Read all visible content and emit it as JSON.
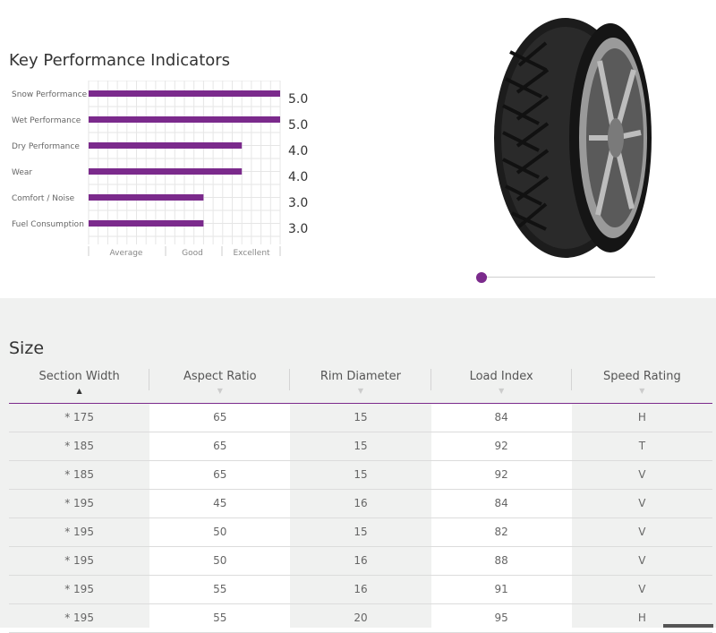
{
  "kpi": {
    "title": "Key Performance Indicators",
    "colors": {
      "bar": "#7b2a8c",
      "grid": "#e6e6e6"
    },
    "scale_labels": [
      "Average",
      "Good",
      "Excellent"
    ]
  },
  "chart_data": {
    "type": "bar",
    "orientation": "horizontal",
    "title": "Key Performance Indicators",
    "categories": [
      "Snow Performance",
      "Wet Performance",
      "Dry Performance",
      "Wear",
      "Comfort / Noise",
      "Fuel Consumption"
    ],
    "values": [
      5.0,
      5.0,
      4.0,
      4.0,
      3.0,
      3.0
    ],
    "value_labels": [
      "5.0",
      "5.0",
      "4.0",
      "4.0",
      "3.0",
      "3.0"
    ],
    "xlim": [
      0,
      5
    ],
    "x_tick_labels": [
      "Average",
      "Good",
      "Excellent"
    ],
    "grid": true
  },
  "product": {
    "image": "tire-image"
  },
  "slider": {
    "position": 0.0,
    "color": "#7b2a8c"
  },
  "size": {
    "title": "Size",
    "columns": [
      "Section Width",
      "Aspect Ratio",
      "Rim Diameter",
      "Load Index",
      "Speed Rating"
    ],
    "sort_arrows": [
      "▲",
      "▼",
      "▼",
      "▼",
      "▼"
    ],
    "rows": [
      [
        "* 175",
        "65",
        "15",
        "84",
        "H"
      ],
      [
        "* 185",
        "65",
        "15",
        "92",
        "T"
      ],
      [
        "* 185",
        "65",
        "15",
        "92",
        "V"
      ],
      [
        "* 195",
        "45",
        "16",
        "84",
        "V"
      ],
      [
        "* 195",
        "50",
        "15",
        "82",
        "V"
      ],
      [
        "* 195",
        "50",
        "16",
        "88",
        "V"
      ],
      [
        "* 195",
        "55",
        "16",
        "91",
        "V"
      ],
      [
        "* 195",
        "55",
        "20",
        "95",
        "H"
      ]
    ]
  }
}
